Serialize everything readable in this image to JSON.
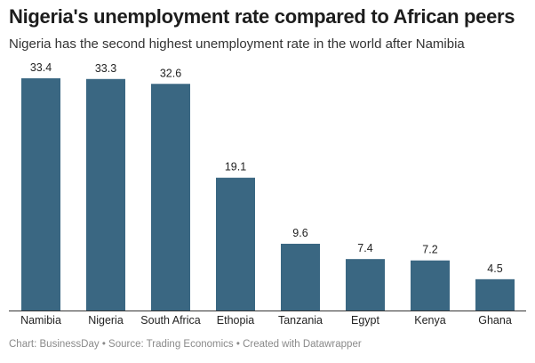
{
  "chart_data": {
    "type": "bar",
    "title": "Nigeria's unemployment rate compared to African peers",
    "subtitle": "Nigeria has the second highest unemployment rate in the world after Namibia",
    "categories": [
      "Namibia",
      "Nigeria",
      "South Africa",
      "Ethopia",
      "Tanzania",
      "Egypt",
      "Kenya",
      "Ghana"
    ],
    "values": [
      33.4,
      33.3,
      32.6,
      19.1,
      9.6,
      7.4,
      7.2,
      4.5
    ],
    "value_labels": [
      "33.4",
      "33.3",
      "32.6",
      "19.1",
      "9.6",
      "7.4",
      "7.2",
      "4.5"
    ],
    "xlabel": "",
    "ylabel": "",
    "ylim": [
      0,
      33.4
    ],
    "grid": false,
    "bar_color": "#3a6782",
    "footer": "Chart: BusinessDay • Source: Trading Economics • Created with Datawrapper"
  }
}
